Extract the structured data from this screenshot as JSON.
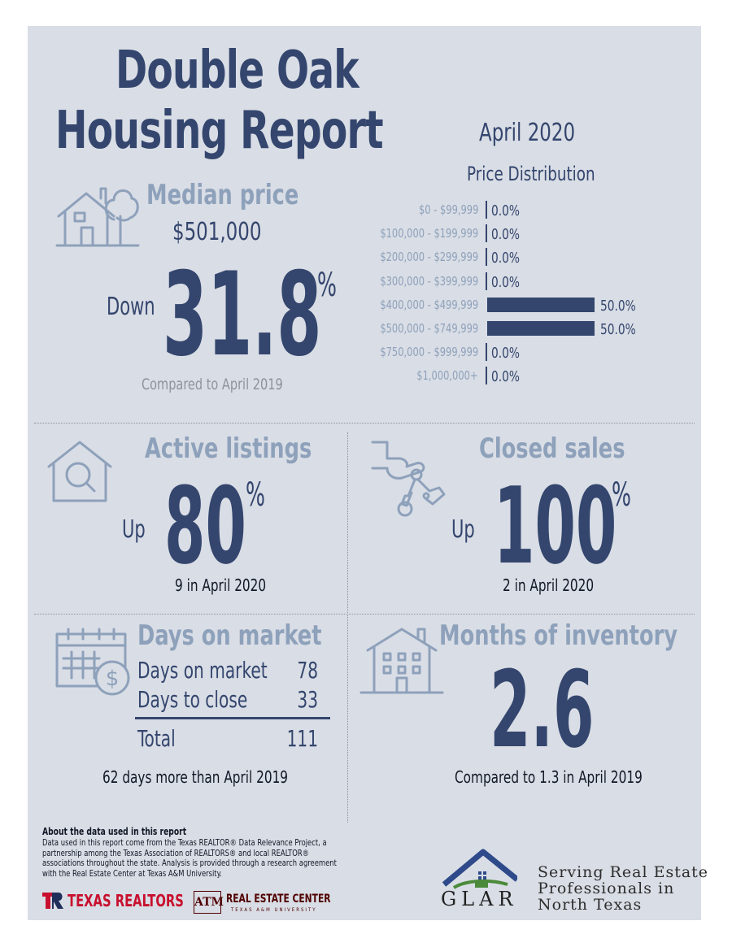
{
  "header": {
    "title_line1": "Double Oak",
    "title_line2": "Housing Report",
    "period": "April 2020"
  },
  "median": {
    "title": "Median price",
    "icon": "house-tree-icon",
    "price": "$501,000",
    "direction": "Down",
    "change": "31.8",
    "unit": "%",
    "compared": "Compared to April 2019"
  },
  "price_distribution": {
    "title": "Price Distribution",
    "rows": [
      {
        "range": "$0 - $99,999",
        "label": "0.0%",
        "value": 0.0
      },
      {
        "range": "$100,000 - $199,999",
        "label": "0.0%",
        "value": 0.0
      },
      {
        "range": "$200,000 - $299,999",
        "label": "0.0%",
        "value": 0.0
      },
      {
        "range": "$300,000 - $399,999",
        "label": "0.0%",
        "value": 0.0
      },
      {
        "range": "$400,000 - $499,999",
        "label": "50.0%",
        "value": 50.0
      },
      {
        "range": "$500,000 - $749,999",
        "label": "50.0%",
        "value": 50.0
      },
      {
        "range": "$750,000 - $999,999",
        "label": "0.0%",
        "value": 0.0
      },
      {
        "range": "$1,000,000+",
        "label": "0.0%",
        "value": 0.0
      }
    ]
  },
  "active": {
    "title": "Active listings",
    "icon": "house-magnifier-icon",
    "direction": "Up",
    "change": "80",
    "unit": "%",
    "note": "9 in April 2020"
  },
  "closed": {
    "title": "Closed sales",
    "icon": "hand-keys-icon",
    "direction": "Up",
    "change": "100",
    "unit": "%",
    "note": "2 in April 2020"
  },
  "dom": {
    "title": "Days on market",
    "icon": "calendar-dollar-icon",
    "rows": [
      {
        "label": "Days on market",
        "value": "78"
      },
      {
        "label": "Days to close",
        "value": "33"
      }
    ],
    "total_label": "Total",
    "total_value": "111",
    "note": "62 days more than April 2019"
  },
  "inventory": {
    "title": "Months of inventory",
    "icon": "apartment-building-icon",
    "value": "2.6",
    "note": "Compared to 1.3 in April 2019"
  },
  "about": {
    "heading": "About the data used in this report",
    "body": "Data used in this report come from the Texas REALTOR® Data Relevance Project, a partnership among the Texas Association of REALTORS® and local REALTOR® associations throughout the state. Analysis is provided through a research agreement with the Real Estate Center at Texas A&M University."
  },
  "footer": {
    "tr_logo_text": "TEXAS REALTORS",
    "tamu_text": "ATM",
    "rec_text": "REAL ESTATE CENTER",
    "rec_sub": "TEXAS A&M UNIVERSITY",
    "glar_text": "GLAR",
    "serving_line1": "Serving Real Estate",
    "serving_line2": "Professionals in",
    "serving_line3": "North Texas",
    "colors": {
      "navy": "#34466e",
      "light_blue": "#8ea1bb",
      "red": "#c8102e",
      "maroon": "#500000",
      "glar_blue": "#2e4a8b",
      "glar_green": "#4a8a3a"
    }
  }
}
